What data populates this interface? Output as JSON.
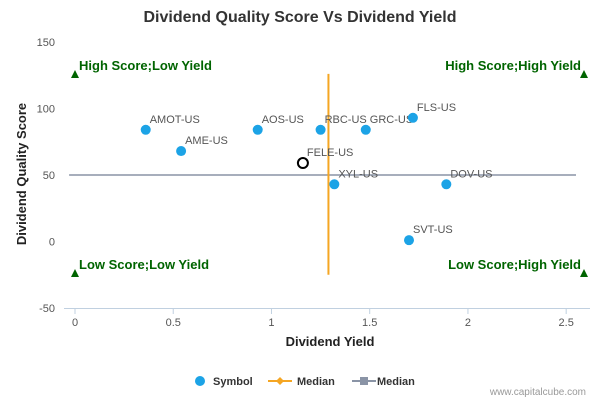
{
  "chart_data": {
    "type": "scatter",
    "title": "Dividend Quality Score Vs Dividend Yield",
    "xlabel": "Dividend Yield",
    "ylabel": "Dividend Quality Score",
    "xlim": [
      0,
      2.55
    ],
    "ylim": [
      -50,
      150
    ],
    "xticks": [
      0,
      0.5,
      1,
      1.5,
      2,
      2.5
    ],
    "xtick_labels": [
      "0",
      "0.5",
      "1",
      "1.5",
      "2",
      "2.5"
    ],
    "yticks": [
      -50,
      0,
      50,
      100,
      150
    ],
    "ytick_labels": [
      "-50",
      "0",
      "50",
      "100",
      "150"
    ],
    "grid": false,
    "legend_position": "bottom-center",
    "series": [
      {
        "name": "Symbol",
        "color": "#1ca3e6",
        "points": [
          {
            "label": "AMOT-US",
            "x": 0.36,
            "y": 84
          },
          {
            "label": "AME-US",
            "x": 0.54,
            "y": 68
          },
          {
            "label": "AOS-US",
            "x": 0.93,
            "y": 84
          },
          {
            "label": "RBC-US",
            "x": 1.25,
            "y": 84
          },
          {
            "label": "GRC-US",
            "x": 1.48,
            "y": 84
          },
          {
            "label": "FLS-US",
            "x": 1.72,
            "y": 93
          },
          {
            "label": "XYL-US",
            "x": 1.32,
            "y": 43
          },
          {
            "label": "DOV-US",
            "x": 1.89,
            "y": 43
          },
          {
            "label": "SVT-US",
            "x": 1.7,
            "y": 1
          }
        ]
      },
      {
        "name": "Median",
        "color": "#f5a623",
        "orientation": "vertical",
        "x": 1.29,
        "y_range": [
          -25,
          126
        ]
      },
      {
        "name": "Median",
        "color": "#8a94a6",
        "orientation": "horizontal",
        "y": 50,
        "x_range": [
          -0.03,
          2.55
        ]
      }
    ],
    "highlight": {
      "label": "FELE-US",
      "x": 1.16,
      "y": 59
    },
    "quadrants": [
      {
        "label": "High Score;Low Yield",
        "position": "top-left"
      },
      {
        "label": "High Score;High Yield",
        "position": "top-right"
      },
      {
        "label": "Low Score;Low Yield",
        "position": "bottom-left"
      },
      {
        "label": "Low Score;High Yield",
        "position": "bottom-right"
      }
    ],
    "marker_color": "#006400"
  },
  "credit": "www.capitalcube.com"
}
